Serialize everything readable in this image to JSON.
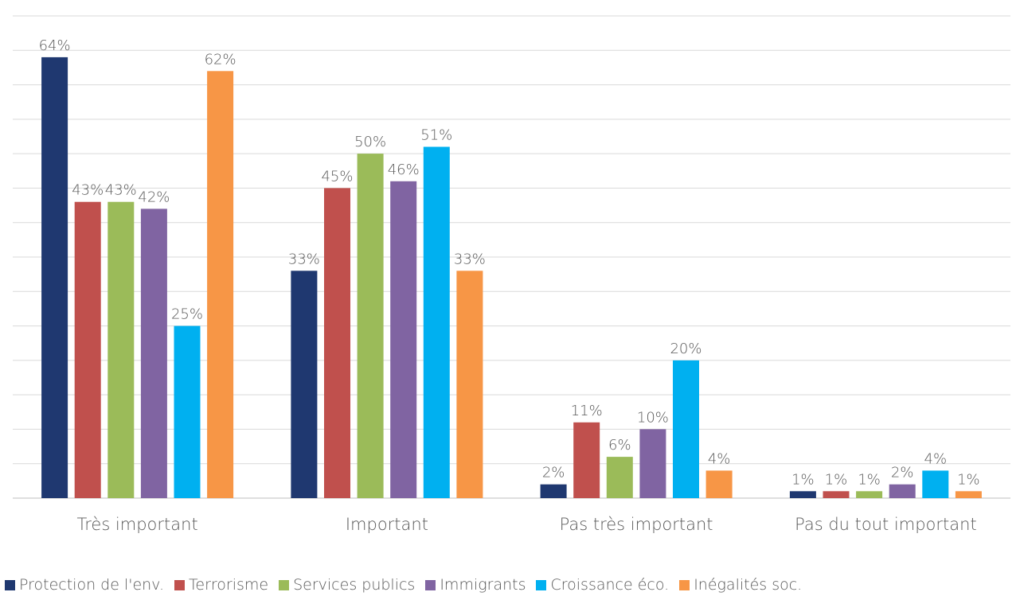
{
  "chart_data": {
    "type": "bar",
    "categories": [
      "Très important",
      "Important",
      "Pas très important",
      "Pas du tout important"
    ],
    "series": [
      {
        "name": "Protection de l'env.",
        "color": "#1f3870",
        "values": [
          64,
          33,
          2,
          1
        ],
        "labels": [
          "64%",
          "33%",
          "2%",
          "1%"
        ]
      },
      {
        "name": "Terrorisme",
        "color": "#c0504d",
        "values": [
          43,
          45,
          11,
          1
        ],
        "labels": [
          "43%",
          "45%",
          "11%",
          "1%"
        ]
      },
      {
        "name": "Services publics",
        "color": "#9bbb59",
        "values": [
          43,
          50,
          6,
          1
        ],
        "labels": [
          "43%",
          "50%",
          "6%",
          "1%"
        ]
      },
      {
        "name": "Immigrants",
        "color": "#8064a2",
        "values": [
          42,
          46,
          10,
          2
        ],
        "labels": [
          "42%",
          "46%",
          "10%",
          "2%"
        ]
      },
      {
        "name": "Croissance éco.",
        "color": "#00b0f0",
        "values": [
          25,
          51,
          20,
          4
        ],
        "labels": [
          "25%",
          "51%",
          "20%",
          "4%"
        ]
      },
      {
        "name": "Inégalités soc.",
        "color": "#f79646",
        "values": [
          62,
          33,
          4,
          1
        ],
        "labels": [
          "62%",
          "33%",
          "4%",
          "1%"
        ]
      }
    ],
    "ylim": [
      0,
      70
    ],
    "grid": true,
    "legend": "bottom"
  }
}
